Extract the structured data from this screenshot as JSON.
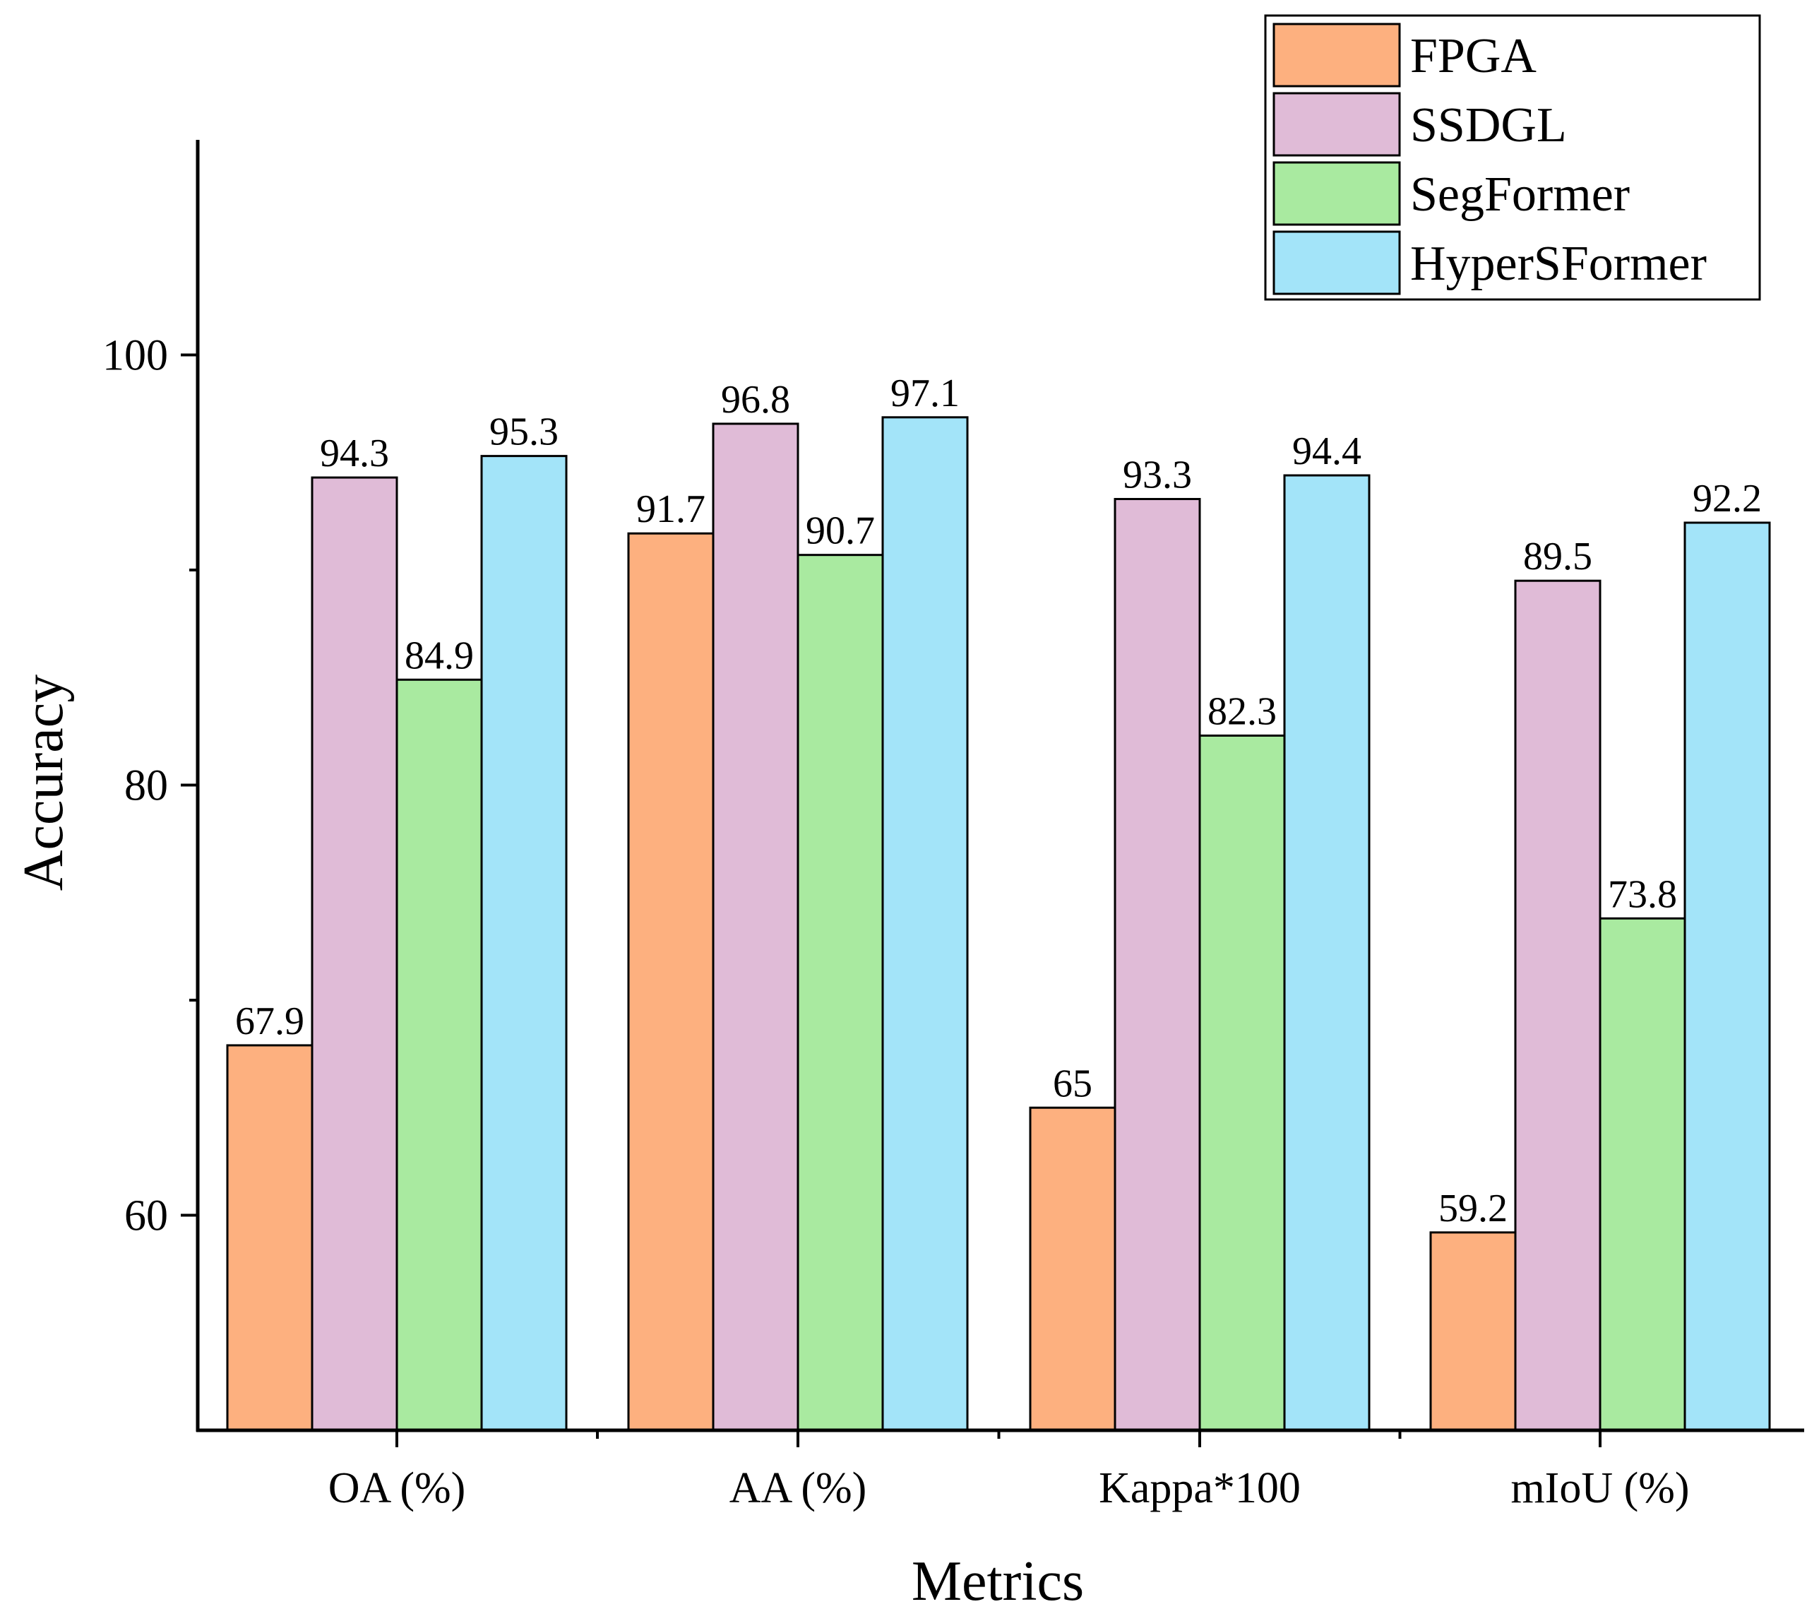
{
  "chart_data": {
    "type": "bar",
    "title": "",
    "xlabel": "Metrics",
    "ylabel": "Accuracy",
    "ylim": [
      50,
      110
    ],
    "yticks": [
      60,
      80,
      100
    ],
    "yticks_minor": [
      70,
      90
    ],
    "grid": false,
    "legend_position": "top-right",
    "categories": [
      "OA (%)",
      "AA (%)",
      "Kappa*100",
      "mIoU (%)"
    ],
    "series": [
      {
        "name": "FPGA",
        "color": "#FDB07F",
        "values": [
          67.9,
          91.7,
          65,
          59.2
        ],
        "labels": [
          "67.9",
          "91.7",
          "65",
          "59.2"
        ]
      },
      {
        "name": "SSDGL",
        "color": "#E0BBD7",
        "values": [
          94.3,
          96.8,
          93.3,
          89.5
        ],
        "labels": [
          "94.3",
          "96.8",
          "93.3",
          "89.5"
        ]
      },
      {
        "name": "SegFormer",
        "color": "#A9EAA0",
        "values": [
          84.9,
          90.7,
          82.3,
          73.8
        ],
        "labels": [
          "84.9",
          "90.7",
          "82.3",
          "73.8"
        ]
      },
      {
        "name": "HyperSFormer",
        "color": "#A3E4F9",
        "values": [
          95.3,
          97.1,
          94.4,
          92.2
        ],
        "labels": [
          "95.3",
          "97.1",
          "94.4",
          "92.2"
        ]
      }
    ]
  }
}
